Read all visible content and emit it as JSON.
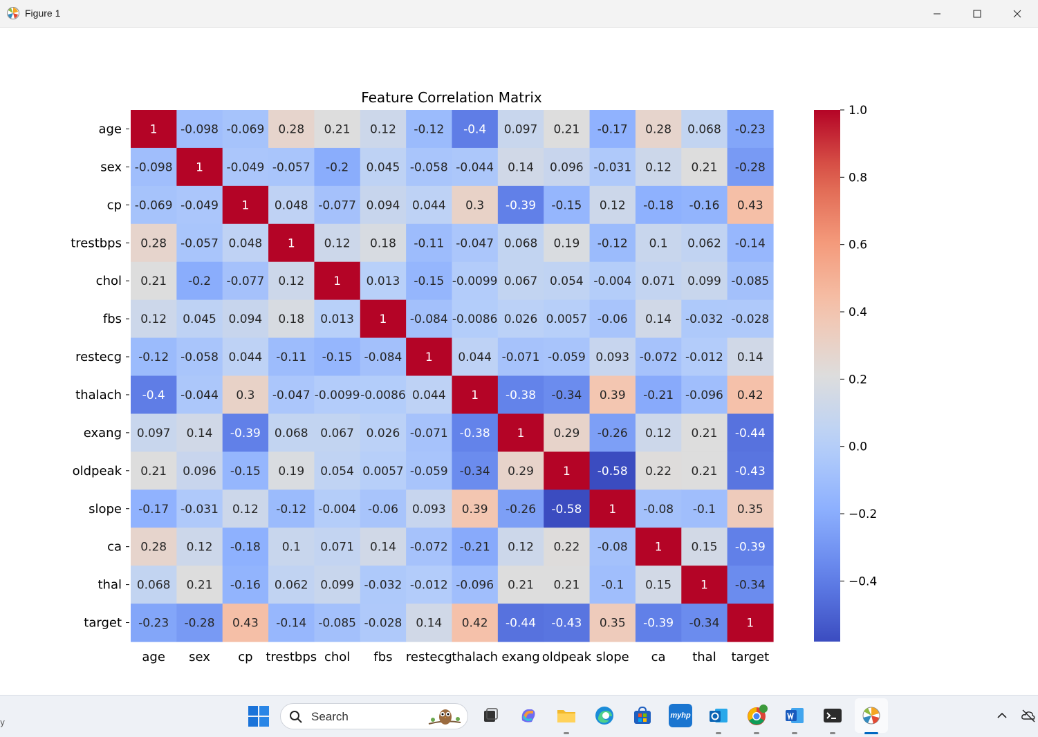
{
  "window": {
    "title": "Figure 1",
    "minimize_icon": "minimize-icon",
    "maximize_icon": "maximize-icon",
    "close_icon": "close-icon"
  },
  "chart_data": {
    "type": "heatmap",
    "title": "Feature Correlation Matrix",
    "xlabel": "",
    "ylabel": "",
    "labels": [
      "age",
      "sex",
      "cp",
      "trestbps",
      "chol",
      "fbs",
      "restecg",
      "thalach",
      "exang",
      "oldpeak",
      "slope",
      "ca",
      "thal",
      "target"
    ],
    "colormap": "coolwarm",
    "vmin": -0.58,
    "vmax": 1.0,
    "colorbar_ticks": [
      {
        "value": 1.0,
        "label": "1.0"
      },
      {
        "value": 0.8,
        "label": "0.8"
      },
      {
        "value": 0.6,
        "label": "0.6"
      },
      {
        "value": 0.4,
        "label": "0.4"
      },
      {
        "value": 0.2,
        "label": "0.2"
      },
      {
        "value": 0.0,
        "label": "0.0"
      },
      {
        "value": -0.2,
        "label": "−0.2"
      },
      {
        "value": -0.4,
        "label": "−0.4"
      }
    ],
    "values": [
      [
        1,
        -0.098,
        -0.069,
        0.28,
        0.21,
        0.12,
        -0.12,
        -0.4,
        0.097,
        0.21,
        -0.17,
        0.28,
        0.068,
        -0.23
      ],
      [
        -0.098,
        1,
        -0.049,
        -0.057,
        -0.2,
        0.045,
        -0.058,
        -0.044,
        0.14,
        0.096,
        -0.031,
        0.12,
        0.21,
        -0.28
      ],
      [
        -0.069,
        -0.049,
        1,
        0.048,
        -0.077,
        0.094,
        0.044,
        0.3,
        -0.39,
        -0.15,
        0.12,
        -0.18,
        -0.16,
        0.43
      ],
      [
        0.28,
        -0.057,
        0.048,
        1,
        0.12,
        0.18,
        -0.11,
        -0.047,
        0.068,
        0.19,
        -0.12,
        0.1,
        0.062,
        -0.14
      ],
      [
        0.21,
        -0.2,
        -0.077,
        0.12,
        1,
        0.013,
        -0.15,
        -0.0099,
        0.067,
        0.054,
        -0.004,
        0.071,
        0.099,
        -0.085
      ],
      [
        0.12,
        0.045,
        0.094,
        0.18,
        0.013,
        1,
        -0.084,
        -0.0086,
        0.026,
        0.0057,
        -0.06,
        0.14,
        -0.032,
        -0.028
      ],
      [
        -0.12,
        -0.058,
        0.044,
        -0.11,
        -0.15,
        -0.084,
        1,
        0.044,
        -0.071,
        -0.059,
        0.093,
        -0.072,
        -0.012,
        0.14
      ],
      [
        -0.4,
        -0.044,
        0.3,
        -0.047,
        -0.0099,
        -0.0086,
        0.044,
        1,
        -0.38,
        -0.34,
        0.39,
        -0.21,
        -0.096,
        0.42
      ],
      [
        0.097,
        0.14,
        -0.39,
        0.068,
        0.067,
        0.026,
        -0.071,
        -0.38,
        1,
        0.29,
        -0.26,
        0.12,
        0.21,
        -0.44
      ],
      [
        0.21,
        0.096,
        -0.15,
        0.19,
        0.054,
        0.0057,
        -0.059,
        -0.34,
        0.29,
        1,
        -0.58,
        0.22,
        0.21,
        -0.43
      ],
      [
        -0.17,
        -0.031,
        0.12,
        -0.12,
        -0.004,
        -0.06,
        0.093,
        0.39,
        -0.26,
        -0.58,
        1,
        -0.08,
        -0.1,
        0.35
      ],
      [
        0.28,
        0.12,
        -0.18,
        0.1,
        0.071,
        0.14,
        -0.072,
        -0.21,
        0.12,
        0.22,
        -0.08,
        1,
        0.15,
        -0.39
      ],
      [
        0.068,
        0.21,
        -0.16,
        0.062,
        0.099,
        -0.032,
        -0.012,
        -0.096,
        0.21,
        0.21,
        -0.1,
        0.15,
        1,
        -0.34
      ],
      [
        -0.23,
        -0.28,
        0.43,
        -0.14,
        -0.085,
        -0.028,
        0.14,
        0.42,
        -0.44,
        -0.43,
        0.35,
        -0.39,
        -0.34,
        1
      ]
    ]
  },
  "taskbar": {
    "search_placeholder": "Search",
    "apps": [
      {
        "name": "start-icon"
      },
      {
        "name": "task-view-icon"
      },
      {
        "name": "copilot-icon"
      },
      {
        "name": "file-explorer-icon"
      },
      {
        "name": "edge-icon"
      },
      {
        "name": "store-icon"
      },
      {
        "name": "myhp-icon",
        "label": "myhp"
      },
      {
        "name": "outlook-icon"
      },
      {
        "name": "chrome-icon"
      },
      {
        "name": "word-icon"
      },
      {
        "name": "terminal-icon"
      },
      {
        "name": "python-figure-icon"
      }
    ],
    "colors": {
      "accent": "#0067c0",
      "taskbar_bg": "#eef1f6"
    }
  },
  "edge_text": "y"
}
